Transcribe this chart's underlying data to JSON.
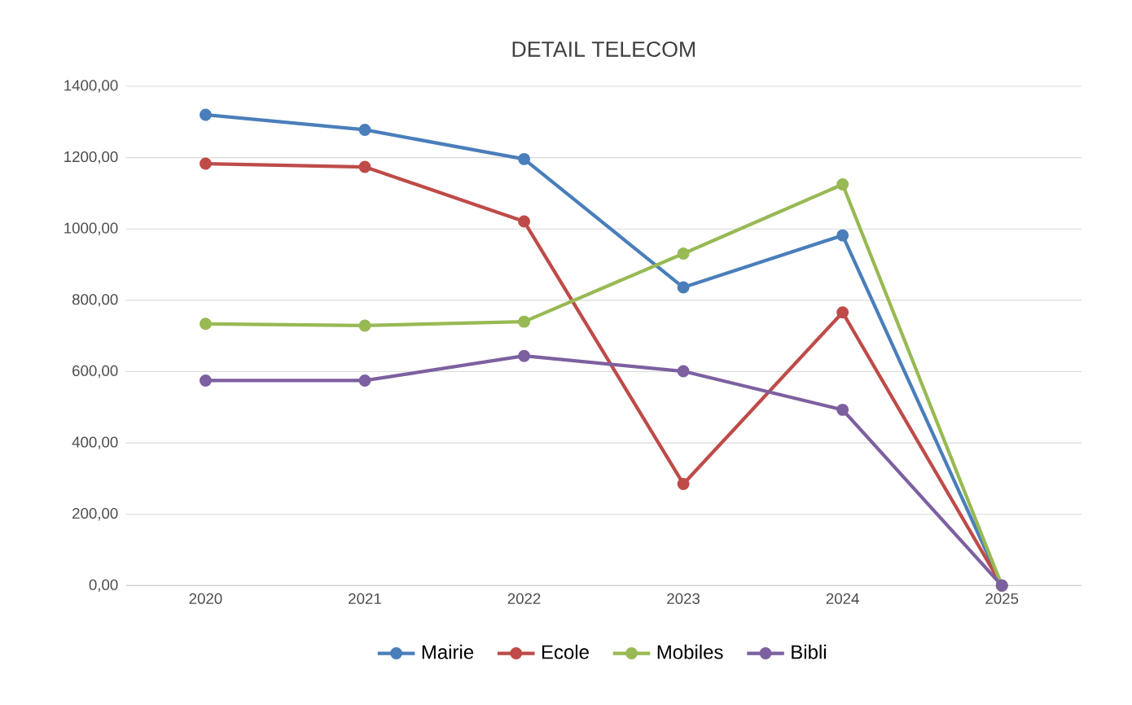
{
  "chart_data": {
    "type": "line",
    "title": "DETAIL TELECOM",
    "categories": [
      "2020",
      "2021",
      "2022",
      "2023",
      "2024",
      "2025"
    ],
    "series": [
      {
        "name": "Mairie",
        "color": "#4a7ebb",
        "values": [
          1320,
          1278,
          1196,
          836,
          982,
          0
        ]
      },
      {
        "name": "Ecole",
        "color": "#be4b48",
        "values": [
          1183,
          1174,
          1021,
          285,
          766,
          0
        ]
      },
      {
        "name": "Mobiles",
        "color": "#98b954",
        "values": [
          734,
          729,
          740,
          931,
          1125,
          0
        ]
      },
      {
        "name": "Bibli",
        "color": "#7d60a0",
        "values": [
          575,
          575,
          644,
          601,
          493,
          0
        ]
      }
    ],
    "ylim": [
      0,
      1400
    ],
    "yticks": [
      {
        "value": 0,
        "label": "0,00"
      },
      {
        "value": 200,
        "label": "200,00"
      },
      {
        "value": 400,
        "label": "400,00"
      },
      {
        "value": 600,
        "label": "600,00"
      },
      {
        "value": 800,
        "label": "800,00"
      },
      {
        "value": 1000,
        "label": "1000,00"
      },
      {
        "value": 1200,
        "label": "1200,00"
      },
      {
        "value": 1400,
        "label": "1400,00"
      }
    ],
    "grid": "y",
    "legend": "bottom",
    "marker": "circle",
    "line_style": "solid"
  }
}
